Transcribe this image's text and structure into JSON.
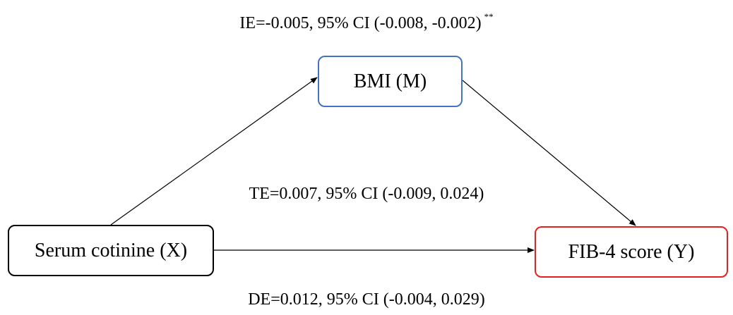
{
  "nodes": {
    "mediator": "BMI (M)",
    "exposure": "Serum cotinine (X)",
    "outcome": "FIB-4 score (Y)"
  },
  "effects": {
    "indirect": "IE=-0.005, 95% CI (-0.008, -0.002)",
    "indirect_significance": "**",
    "total": "TE=0.007, 95% CI (-0.009, 0.024)",
    "direct": "DE=0.012, 95% CI (-0.004, 0.029)"
  },
  "colors": {
    "mediator_border": "#4472c4",
    "exposure_border": "#000000",
    "outcome_border": "#e8201c",
    "arrow": "#000000"
  }
}
